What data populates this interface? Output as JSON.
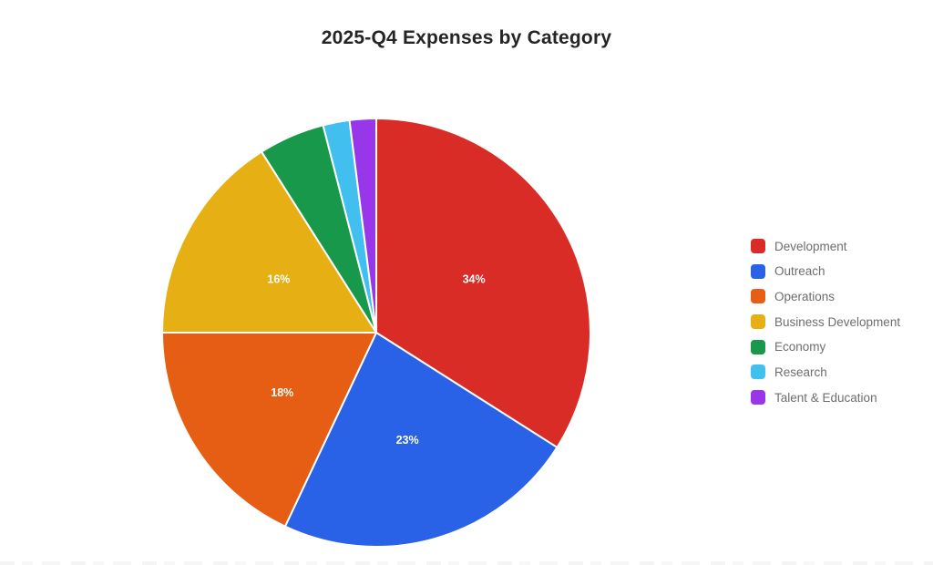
{
  "chart_data": {
    "type": "pie",
    "title": "2025-Q4 Expenses by Category",
    "legend_position": "right",
    "direction": "clockwise",
    "start_angle_deg": 0,
    "slice_label_color": "#ffffff",
    "legend_text_color": "#6e6e6e",
    "title_color": "#252525",
    "background_color": "#ffffff",
    "slices": [
      {
        "label": "Development",
        "value": 34,
        "pct_label": "34%",
        "show_pct": true,
        "color": "#d92c27"
      },
      {
        "label": "Outreach",
        "value": 23,
        "pct_label": "23%",
        "show_pct": true,
        "color": "#2962e6"
      },
      {
        "label": "Operations",
        "value": 18,
        "pct_label": "18%",
        "show_pct": true,
        "color": "#e55e13"
      },
      {
        "label": "Business Development",
        "value": 16,
        "pct_label": "16%",
        "show_pct": true,
        "color": "#e6af13"
      },
      {
        "label": "Economy",
        "value": 5,
        "pct_label": "5%",
        "show_pct": false,
        "color": "#17984a"
      },
      {
        "label": "Research",
        "value": 2,
        "pct_label": "2%",
        "show_pct": false,
        "color": "#41bfee"
      },
      {
        "label": "Talent & Education",
        "value": 2,
        "pct_label": "2%",
        "show_pct": false,
        "color": "#9836e9"
      }
    ]
  }
}
